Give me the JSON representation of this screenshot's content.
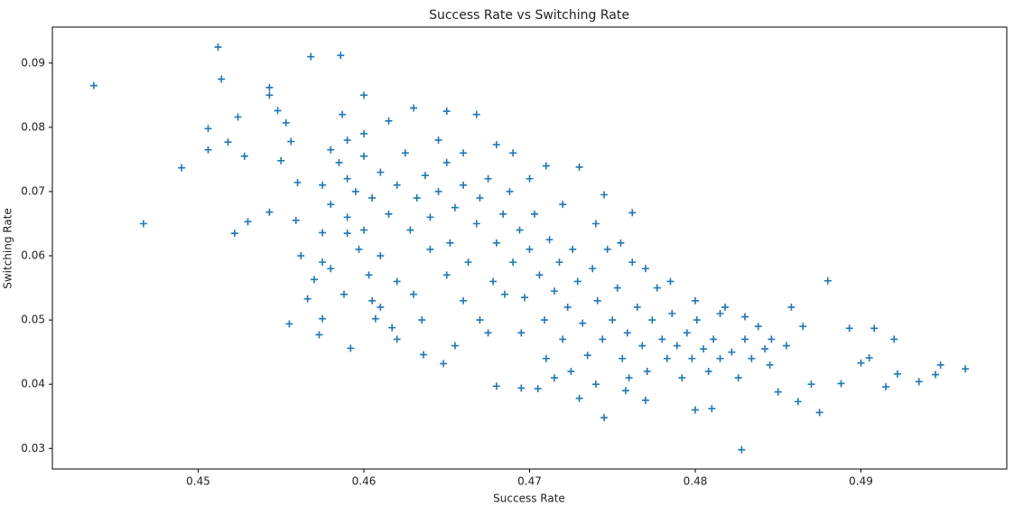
{
  "chart_data": {
    "type": "scatter",
    "title": "Success Rate vs Switching Rate",
    "x_label": "Success Rate",
    "y_label": "Switching Rate",
    "color": "#1f77b4",
    "marker": "+",
    "xlim": [
      0.4412,
      0.4988
    ],
    "ylim": [
      0.0268,
      0.0956
    ],
    "xticks": [
      0.45,
      0.46,
      0.47,
      0.48,
      0.49
    ],
    "yticks": [
      0.03,
      0.04,
      0.05,
      0.06,
      0.07,
      0.08,
      0.09
    ],
    "grid": false,
    "x": [
      0.4437,
      0.4512,
      0.4514,
      0.4568,
      0.4586,
      0.4467,
      0.449,
      0.4506,
      0.4506,
      0.4518,
      0.4524,
      0.4528,
      0.4522,
      0.453,
      0.4543,
      0.4543,
      0.4543,
      0.4548,
      0.4553,
      0.4556,
      0.455,
      0.456,
      0.4559,
      0.4562,
      0.4555,
      0.4566,
      0.457,
      0.4573,
      0.4575,
      0.4592,
      0.4607,
      0.46,
      0.463,
      0.465,
      0.4668,
      0.468,
      0.473,
      0.4745,
      0.4762,
      0.488,
      0.4828,
      0.4745,
      0.4875,
      0.4963,
      0.4948,
      0.4935,
      0.492,
      0.4908,
      0.4893,
      0.4888,
      0.4915,
      0.4922,
      0.4945,
      0.49,
      0.4905,
      0.4865,
      0.4858,
      0.4855,
      0.487,
      0.4862,
      0.485,
      0.4845,
      0.481,
      0.48,
      0.477,
      0.4758,
      0.473,
      0.4695,
      0.468,
      0.4705,
      0.4648,
      0.4636,
      0.462,
      0.4617,
      0.4605,
      0.4588,
      0.458,
      0.4575,
      0.459,
      0.4575,
      0.4575,
      0.458,
      0.4587,
      0.459,
      0.4585,
      0.459,
      0.4595,
      0.46,
      0.4605,
      0.461,
      0.4615,
      0.462,
      0.4625,
      0.4628,
      0.4632,
      0.4637,
      0.464,
      0.4645,
      0.465,
      0.4652,
      0.4655,
      0.466,
      0.4663,
      0.4668,
      0.467,
      0.4675,
      0.4678,
      0.468,
      0.4684,
      0.4688,
      0.469,
      0.4694,
      0.4697,
      0.47,
      0.4703,
      0.4706,
      0.4709,
      0.4712,
      0.4715,
      0.4718,
      0.472,
      0.4723,
      0.4726,
      0.4729,
      0.4732,
      0.4735,
      0.4738,
      0.4741,
      0.4744,
      0.4747,
      0.475,
      0.4753,
      0.4756,
      0.4759,
      0.4762,
      0.4765,
      0.4768,
      0.4771,
      0.4774,
      0.4777,
      0.478,
      0.4783,
      0.4786,
      0.4789,
      0.4792,
      0.4795,
      0.4798,
      0.4801,
      0.4805,
      0.4808,
      0.4811,
      0.4815,
      0.4818,
      0.4822,
      0.4826,
      0.483,
      0.4834,
      0.4838,
      0.4842,
      0.4846,
      0.46,
      0.461,
      0.462,
      0.463,
      0.464,
      0.465,
      0.466,
      0.467,
      0.4685,
      0.4695,
      0.471,
      0.4725,
      0.47,
      0.472,
      0.474,
      0.4755,
      0.477,
      0.4785,
      0.48,
      0.4815,
      0.483,
      0.4645,
      0.466,
      0.46,
      0.4615,
      0.469,
      0.471,
      0.458,
      0.459,
      0.4597,
      0.4603,
      0.461,
      0.4635,
      0.4655,
      0.4675,
      0.4715,
      0.474,
      0.476
    ],
    "values": [
      0.0865,
      0.0925,
      0.0875,
      0.091,
      0.0912,
      0.065,
      0.0737,
      0.0798,
      0.0765,
      0.0777,
      0.0816,
      0.0755,
      0.0635,
      0.0653,
      0.0668,
      0.0862,
      0.085,
      0.0826,
      0.0807,
      0.0778,
      0.0748,
      0.0714,
      0.0655,
      0.06,
      0.0494,
      0.0533,
      0.0563,
      0.0477,
      0.0502,
      0.0456,
      0.0502,
      0.085,
      0.083,
      0.0825,
      0.082,
      0.0773,
      0.0738,
      0.0695,
      0.0667,
      0.0561,
      0.0298,
      0.0348,
      0.0356,
      0.0424,
      0.043,
      0.0404,
      0.047,
      0.0487,
      0.0487,
      0.0401,
      0.0396,
      0.0416,
      0.0415,
      0.0433,
      0.0441,
      0.049,
      0.052,
      0.046,
      0.04,
      0.0373,
      0.0388,
      0.043,
      0.0362,
      0.036,
      0.0375,
      0.039,
      0.0378,
      0.0394,
      0.0397,
      0.0393,
      0.0432,
      0.0446,
      0.047,
      0.0488,
      0.053,
      0.054,
      0.058,
      0.059,
      0.0635,
      0.0636,
      0.071,
      0.0765,
      0.082,
      0.078,
      0.0745,
      0.072,
      0.07,
      0.0755,
      0.069,
      0.073,
      0.0665,
      0.071,
      0.076,
      0.064,
      0.069,
      0.0725,
      0.066,
      0.07,
      0.0745,
      0.062,
      0.0675,
      0.071,
      0.059,
      0.065,
      0.069,
      0.072,
      0.056,
      0.062,
      0.0665,
      0.07,
      0.059,
      0.064,
      0.0535,
      0.061,
      0.0665,
      0.057,
      0.05,
      0.0625,
      0.0545,
      0.059,
      0.047,
      0.052,
      0.061,
      0.056,
      0.0495,
      0.0445,
      0.058,
      0.053,
      0.047,
      0.061,
      0.05,
      0.055,
      0.044,
      0.048,
      0.059,
      0.052,
      0.046,
      0.042,
      0.05,
      0.055,
      0.047,
      0.044,
      0.051,
      0.046,
      0.041,
      0.048,
      0.044,
      0.05,
      0.0455,
      0.042,
      0.047,
      0.044,
      0.052,
      0.045,
      0.041,
      0.047,
      0.044,
      0.049,
      0.0455,
      0.047,
      0.064,
      0.06,
      0.056,
      0.054,
      0.061,
      0.057,
      0.053,
      0.05,
      0.054,
      0.048,
      0.044,
      0.042,
      0.072,
      0.068,
      0.065,
      0.062,
      0.058,
      0.056,
      0.053,
      0.051,
      0.0505,
      0.078,
      0.076,
      0.079,
      0.081,
      0.076,
      0.074,
      0.068,
      0.066,
      0.061,
      0.057,
      0.052,
      0.05,
      0.046,
      0.048,
      0.041,
      0.04,
      0.041
    ]
  }
}
